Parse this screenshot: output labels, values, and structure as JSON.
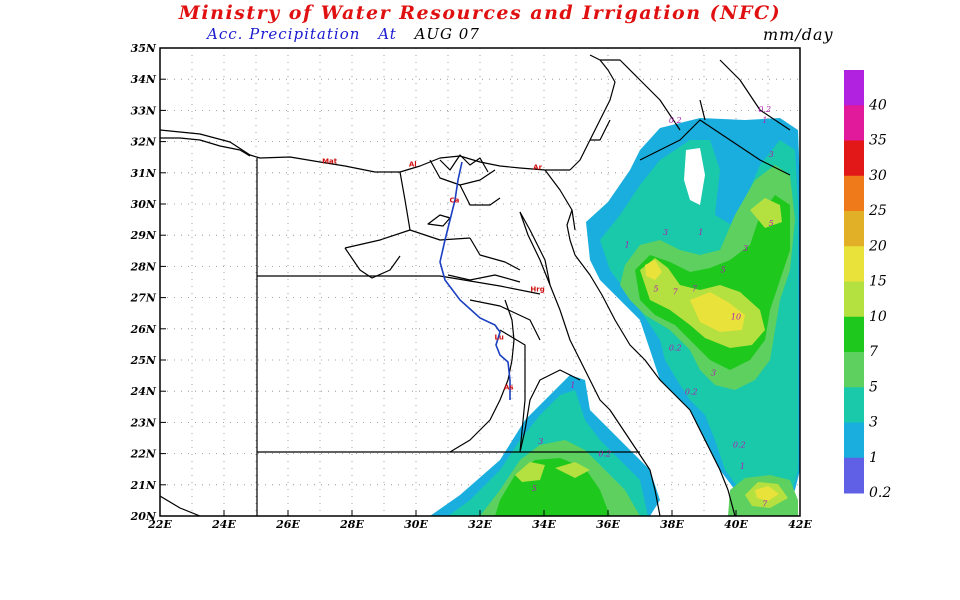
{
  "header": {
    "title": "Ministry of Water Resources and Irrigation (NFC)",
    "subtitle_prefix": "Acc. Precipitation",
    "subtitle_at": "At",
    "subtitle_date": "AUG 07",
    "unit": "mm/day"
  },
  "colors": {
    "title": "#e01010",
    "subtitle": "#1a1ad0",
    "date": "#000000",
    "coast": "#000000",
    "nile": "#1a3fc0",
    "contour_label": "#b020b0"
  },
  "map": {
    "lon_range": [
      22,
      42
    ],
    "lat_range": [
      20,
      35
    ],
    "lon_ticks": [
      "22E",
      "24E",
      "26E",
      "28E",
      "30E",
      "32E",
      "34E",
      "36E",
      "38E",
      "40E",
      "42E"
    ],
    "lat_ticks": [
      "20N",
      "21N",
      "22N",
      "23N",
      "24N",
      "25N",
      "26N",
      "27N",
      "28N",
      "29N",
      "30N",
      "31N",
      "32N",
      "33N",
      "34N",
      "35N"
    ],
    "cities": [
      {
        "label": "Mat",
        "lon": 27.3,
        "lat": 31.3
      },
      {
        "label": "Al",
        "lon": 29.9,
        "lat": 31.2
      },
      {
        "label": "Ca",
        "lon": 31.2,
        "lat": 30.05
      },
      {
        "label": "Ar",
        "lon": 33.8,
        "lat": 31.1
      },
      {
        "label": "Hrg",
        "lon": 33.8,
        "lat": 27.2
      },
      {
        "label": "Lu",
        "lon": 32.6,
        "lat": 25.65
      },
      {
        "label": "As",
        "lon": 32.9,
        "lat": 24.05
      }
    ],
    "contour_labels": [
      {
        "text": "0.2",
        "lon": 38.1,
        "lat": 32.6
      },
      {
        "text": "0.2",
        "lon": 40.9,
        "lat": 32.95
      },
      {
        "text": "1",
        "lon": 40.9,
        "lat": 32.6
      },
      {
        "text": "3",
        "lon": 41.1,
        "lat": 31.5
      },
      {
        "text": "5",
        "lon": 41.1,
        "lat": 29.3
      },
      {
        "text": "1",
        "lon": 38.9,
        "lat": 29.0
      },
      {
        "text": "3",
        "lon": 37.8,
        "lat": 29.0
      },
      {
        "text": "1",
        "lon": 36.6,
        "lat": 28.6
      },
      {
        "text": "3",
        "lon": 40.3,
        "lat": 28.5
      },
      {
        "text": "5",
        "lon": 39.6,
        "lat": 27.8
      },
      {
        "text": "5",
        "lon": 37.5,
        "lat": 27.2
      },
      {
        "text": "7",
        "lon": 38.1,
        "lat": 27.1
      },
      {
        "text": "7",
        "lon": 38.7,
        "lat": 27.2
      },
      {
        "text": "10",
        "lon": 40.0,
        "lat": 26.3
      },
      {
        "text": "0.2",
        "lon": 38.1,
        "lat": 25.3
      },
      {
        "text": "3",
        "lon": 39.3,
        "lat": 24.5
      },
      {
        "text": "0.2",
        "lon": 38.6,
        "lat": 23.9
      },
      {
        "text": "1",
        "lon": 34.9,
        "lat": 24.1
      },
      {
        "text": "3",
        "lon": 33.9,
        "lat": 22.3
      },
      {
        "text": "0.2",
        "lon": 35.9,
        "lat": 21.9
      },
      {
        "text": "0.2",
        "lon": 40.1,
        "lat": 22.2
      },
      {
        "text": "1",
        "lon": 40.2,
        "lat": 21.5
      },
      {
        "text": "5",
        "lon": 33.7,
        "lat": 20.8
      },
      {
        "text": "7",
        "lon": 40.9,
        "lat": 20.3
      }
    ]
  },
  "legend": {
    "labels": [
      "40",
      "35",
      "30",
      "25",
      "20",
      "15",
      "10",
      "7",
      "5",
      "3",
      "1",
      "0.2"
    ],
    "colors": [
      "#b022e0",
      "#e01a9a",
      "#e21818",
      "#ee7a1a",
      "#e2b026",
      "#e9e23a",
      "#b4e040",
      "#1ec81c",
      "#5ed060",
      "#1ac8aa",
      "#1aaede",
      "#6060e6"
    ]
  }
}
